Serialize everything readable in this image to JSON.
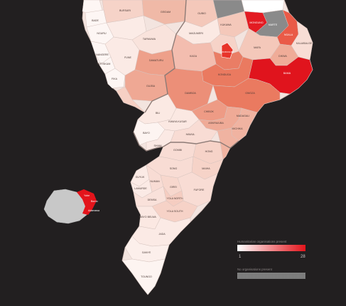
{
  "colors": {
    "background": "#221f20",
    "scale_low": "#ffffff",
    "scale_high": "#e3141b",
    "no_org_fill": "#8a8a8a",
    "border": "#c9b6b0"
  },
  "legend": {
    "title": "Humanitarian organisations present",
    "min": "1",
    "max": "28",
    "no_org_label": "No organisations present"
  },
  "inset": {
    "labels": [
      "Yobe",
      "Borno",
      "Adamawa"
    ]
  },
  "regions": [
    {
      "name": "GIDE",
      "level": 0.04
    },
    {
      "name": "BURSARI",
      "level": 0.12
    },
    {
      "name": "GEIDAM",
      "level": 0.25
    },
    {
      "name": "GUBIO",
      "level": 0.1
    },
    {
      "name": "MAGUMERI",
      "level": 0.05
    },
    {
      "name": "MOBBAR",
      "level": 0.0,
      "no_org": true
    },
    {
      "name": "ABADAM",
      "level": 0.0,
      "no_org": true
    },
    {
      "name": "KUKAWA",
      "level": 0.25
    },
    {
      "name": "MONGUNO",
      "level": 0.95
    },
    {
      "name": "MARTE",
      "level": 0.0,
      "no_org": true
    },
    {
      "name": "NGALA",
      "level": 0.7
    },
    {
      "name": "KALA/BALGE",
      "level": 0.15
    },
    {
      "name": "BAMA",
      "level": 0.95
    },
    {
      "name": "DIKWA",
      "level": 0.4
    },
    {
      "name": "MAFA",
      "level": 0.25
    },
    {
      "name": "JERE",
      "level": 0.55
    },
    {
      "name": "MAIDUGURI",
      "level": 0.85
    },
    {
      "name": "KONDUGA",
      "level": 0.6
    },
    {
      "name": "NGANZAI",
      "level": 0.15
    },
    {
      "name": "KAGA",
      "level": 0.2
    },
    {
      "name": "DAMBOA",
      "level": 0.55
    },
    {
      "name": "GWOZA",
      "level": 0.6
    },
    {
      "name": "CHIBOK",
      "level": 0.45
    },
    {
      "name": "ASKIRA/UBA",
      "level": 0.35
    },
    {
      "name": "MADAGALI",
      "level": 0.3
    },
    {
      "name": "MICHIKA",
      "level": 0.3
    },
    {
      "name": "DAMATURU",
      "level": 0.4
    },
    {
      "name": "GUJBA",
      "level": 0.35
    },
    {
      "name": "FUNE",
      "level": 0.06
    },
    {
      "name": "POTISKUM",
      "level": 0.04
    },
    {
      "name": "FIKA",
      "level": 0.04
    },
    {
      "name": "NANGERE",
      "level": 0.04
    },
    {
      "name": "TARMUWA",
      "level": 0.06
    },
    {
      "name": "JAKUSKO",
      "level": 0.03
    },
    {
      "name": "NGURU",
      "level": 0.03
    },
    {
      "name": "BADE",
      "level": 0.03
    },
    {
      "name": "KARASUWA",
      "level": 0.03
    },
    {
      "name": "YUNUSARI",
      "level": 0.05
    },
    {
      "name": "BIU",
      "level": 0.06
    },
    {
      "name": "KWAYA KUSAR",
      "level": 0.05
    },
    {
      "name": "BAYO",
      "level": 0.03
    },
    {
      "name": "SHANI",
      "level": 0.05
    },
    {
      "name": "HAWUL",
      "level": 0.1
    },
    {
      "name": "GOMBI",
      "level": 0.1
    },
    {
      "name": "HONG",
      "level": 0.15
    },
    {
      "name": "MUBI NORTH",
      "level": 0.3
    },
    {
      "name": "MUBI SOUTH",
      "level": 0.25
    },
    {
      "name": "MAIHA",
      "level": 0.15
    },
    {
      "name": "SONG",
      "level": 0.1
    },
    {
      "name": "GUYUK",
      "level": 0.05
    },
    {
      "name": "LAMURDE",
      "level": 0.05
    },
    {
      "name": "NUMAN",
      "level": 0.1
    },
    {
      "name": "DEMSA",
      "level": 0.08
    },
    {
      "name": "GIREI",
      "level": 0.12
    },
    {
      "name": "YOLA NORTH",
      "level": 0.18
    },
    {
      "name": "YOLA SOUTH",
      "level": 0.14
    },
    {
      "name": "FUFORE",
      "level": 0.1
    },
    {
      "name": "MAYO BELWA",
      "level": 0.06
    },
    {
      "name": "JADA",
      "level": 0.05
    },
    {
      "name": "GANYE",
      "level": 0.04
    },
    {
      "name": "TOUNGO",
      "level": 0.03
    },
    {
      "name": "SHELLENG",
      "level": 0.06
    }
  ]
}
